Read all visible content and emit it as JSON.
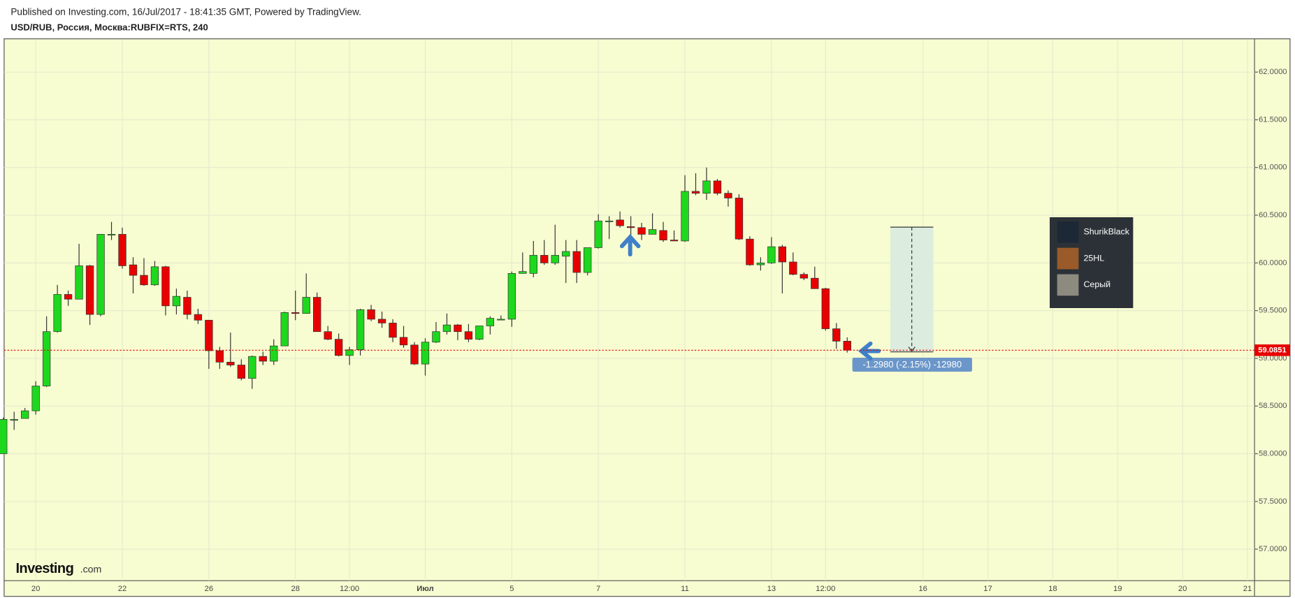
{
  "chart_data": {
    "type": "candlestick",
    "title": "Published on Investing.com, 16/Jul/2017 - 18:41:35 GMT, Powered by TradingView.",
    "subtitle": "USD/RUB, Россия, Москва:RUBFIX=RTS, 240",
    "categories": [
      null,
      null,
      null,
      "20",
      null,
      null,
      null,
      null,
      null,
      null,
      null,
      "22",
      null,
      null,
      null,
      null,
      null,
      null,
      null,
      "26",
      null,
      null,
      null,
      null,
      null,
      null,
      null,
      "28",
      null,
      null,
      null,
      null,
      "12:00",
      null,
      null,
      null,
      null,
      null,
      null,
      "Июл",
      null,
      null,
      null,
      null,
      null,
      null,
      null,
      "5",
      null,
      null,
      null,
      null,
      null,
      null,
      null,
      "7",
      null,
      null,
      null,
      null,
      null,
      null,
      null,
      "11",
      null,
      null,
      null,
      null,
      null,
      null,
      null,
      "13",
      null,
      null,
      null,
      null,
      "12:00",
      null,
      null,
      null,
      null,
      null,
      null,
      null,
      null,
      "16",
      null,
      null,
      null,
      null,
      null,
      "17",
      null,
      null,
      null,
      null,
      null,
      "18",
      null,
      null,
      null,
      null,
      null,
      "19",
      null,
      null,
      null,
      null,
      null,
      "20",
      null,
      null,
      null,
      null,
      null,
      "21"
    ],
    "open": [
      58.0,
      58.36,
      58.37,
      58.45,
      58.71,
      59.28,
      59.67,
      59.62,
      59.97,
      59.46,
      60.3,
      60.3,
      59.98,
      59.87,
      59.77,
      59.96,
      59.55,
      59.64,
      59.46,
      59.4,
      59.08,
      58.96,
      58.93,
      58.79,
      59.02,
      58.97,
      59.13,
      59.48,
      59.47,
      59.64,
      59.28,
      59.2,
      59.03,
      59.09,
      59.51,
      59.41,
      59.37,
      59.22,
      59.14,
      58.94,
      59.17,
      59.28,
      59.35,
      59.28,
      59.2,
      59.34,
      59.41,
      59.41,
      59.89,
      59.89,
      60.08,
      60.0,
      60.07,
      60.12,
      59.9,
      60.16,
      60.44,
      60.45,
      60.38,
      60.37,
      60.3,
      60.34,
      60.24,
      60.23,
      60.75,
      60.73,
      60.86,
      60.73,
      60.68,
      60.25,
      59.98,
      60.0,
      60.17,
      60.01,
      59.88,
      59.84,
      59.73,
      59.31,
      59.18,
      null,
      null,
      null,
      null,
      null,
      null,
      null,
      null,
      null,
      null,
      null,
      null,
      null,
      null,
      null,
      null,
      null,
      null,
      null,
      null,
      null,
      null,
      null,
      null,
      null,
      null,
      null,
      null,
      null,
      null,
      null,
      null,
      null,
      null,
      null,
      null,
      null
    ],
    "high": [
      58.38,
      58.44,
      58.48,
      58.76,
      59.44,
      59.77,
      59.71,
      60.2,
      59.98,
      60.3,
      60.43,
      60.37,
      60.06,
      60.05,
      60.02,
      59.97,
      59.73,
      59.71,
      59.52,
      59.4,
      59.12,
      59.27,
      58.99,
      59.03,
      59.07,
      59.2,
      59.49,
      59.71,
      59.89,
      59.69,
      59.34,
      59.26,
      59.12,
      59.52,
      59.56,
      59.49,
      59.41,
      59.34,
      59.17,
      59.21,
      59.38,
      59.47,
      59.36,
      59.36,
      59.34,
      59.44,
      59.45,
      59.91,
      60.11,
      60.23,
      60.24,
      60.4,
      60.24,
      60.24,
      60.16,
      60.51,
      60.49,
      60.54,
      60.49,
      60.42,
      60.52,
      60.43,
      60.34,
      60.92,
      60.94,
      61.0,
      60.88,
      60.76,
      60.72,
      60.28,
      60.06,
      60.27,
      60.19,
      60.11,
      59.9,
      59.96,
      59.74,
      59.37,
      59.22,
      null,
      null,
      null,
      null,
      null,
      null,
      null,
      null,
      null,
      null,
      null,
      null,
      null,
      null,
      null,
      null,
      null,
      null,
      null,
      null,
      null,
      null,
      null,
      null,
      null,
      null,
      null,
      null,
      null,
      null,
      null,
      null,
      null,
      null,
      null,
      null,
      null
    ],
    "low": [
      58.0,
      58.25,
      58.37,
      58.41,
      58.7,
      59.27,
      59.55,
      59.62,
      59.35,
      59.44,
      60.24,
      59.94,
      59.68,
      59.76,
      59.76,
      59.45,
      59.46,
      59.41,
      59.36,
      58.89,
      58.89,
      58.91,
      58.77,
      58.68,
      58.93,
      58.93,
      59.13,
      59.4,
      59.47,
      59.28,
      59.19,
      59.02,
      58.93,
      59.03,
      59.39,
      59.32,
      59.17,
      59.11,
      58.93,
      58.82,
      59.16,
      59.25,
      59.19,
      59.17,
      59.19,
      59.25,
      59.4,
      59.33,
      59.89,
      59.85,
      59.98,
      59.98,
      59.79,
      59.79,
      59.87,
      60.15,
      60.25,
      60.37,
      60.28,
      60.24,
      60.3,
      60.22,
      60.23,
      60.22,
      60.71,
      60.66,
      60.71,
      60.59,
      60.24,
      59.97,
      59.92,
      59.99,
      59.68,
      59.87,
      59.82,
      59.73,
      59.29,
      59.1,
      59.06,
      null,
      null,
      null,
      null,
      null,
      null,
      null,
      null,
      null,
      null,
      null,
      null,
      null,
      null,
      null,
      null,
      null,
      null,
      null,
      null,
      null,
      null,
      null,
      null,
      null,
      null,
      null,
      null,
      null,
      null,
      null,
      null,
      null,
      null,
      null,
      null,
      null
    ],
    "close": [
      58.36,
      58.36,
      58.45,
      58.71,
      59.28,
      59.67,
      59.62,
      59.97,
      59.46,
      60.3,
      60.3,
      59.97,
      59.87,
      59.77,
      59.96,
      59.55,
      59.65,
      59.46,
      59.4,
      59.08,
      58.96,
      58.93,
      58.79,
      59.02,
      58.97,
      59.13,
      59.48,
      59.47,
      59.64,
      59.28,
      59.2,
      59.03,
      59.09,
      59.51,
      59.41,
      59.37,
      59.22,
      59.14,
      58.94,
      59.17,
      59.28,
      59.35,
      59.28,
      59.2,
      59.34,
      59.42,
      59.41,
      59.89,
      59.91,
      60.08,
      60.0,
      60.08,
      60.12,
      59.9,
      60.16,
      60.44,
      60.44,
      60.39,
      60.37,
      60.3,
      60.35,
      60.24,
      60.23,
      60.75,
      60.73,
      60.86,
      60.73,
      60.68,
      60.25,
      59.98,
      60.0,
      60.17,
      60.01,
      59.88,
      59.84,
      59.73,
      59.31,
      59.18,
      59.0851,
      null,
      null,
      null,
      null,
      null,
      null,
      null,
      null,
      null,
      null,
      null,
      null,
      null,
      null,
      null,
      null,
      null,
      null,
      null,
      null,
      null,
      null,
      null,
      null,
      null,
      null,
      null,
      null,
      null,
      null,
      null,
      null,
      null,
      null,
      null,
      null,
      null
    ],
    "up_color": "#1ed81e",
    "down_color": "#e80000",
    "ylim": [
      56.67,
      62.34
    ],
    "yticks": [
      {
        "value": 57,
        "label": "57.0000"
      },
      {
        "value": 57.5,
        "label": "57.5000"
      },
      {
        "value": 58,
        "label": "58.0000"
      },
      {
        "value": 58.5,
        "label": "58.5000"
      },
      {
        "value": 59,
        "label": "59.0000"
      },
      {
        "value": 59.5,
        "label": "59.5000"
      },
      {
        "value": 60,
        "label": "60.0000"
      },
      {
        "value": 60.5,
        "label": "60.5000"
      },
      {
        "value": 61,
        "label": "61.0000"
      },
      {
        "value": 61.5,
        "label": "61.5000"
      },
      {
        "value": 62,
        "label": "62.0000"
      }
    ],
    "grid": true,
    "current_price": 59.0851,
    "measure_label": "-1.2980 (-2.15%) -12980",
    "users": [
      "ShurikBlack",
      "25HL",
      "Серый"
    ],
    "logo": {
      "name": "Investing",
      "suffix": ".com"
    }
  }
}
